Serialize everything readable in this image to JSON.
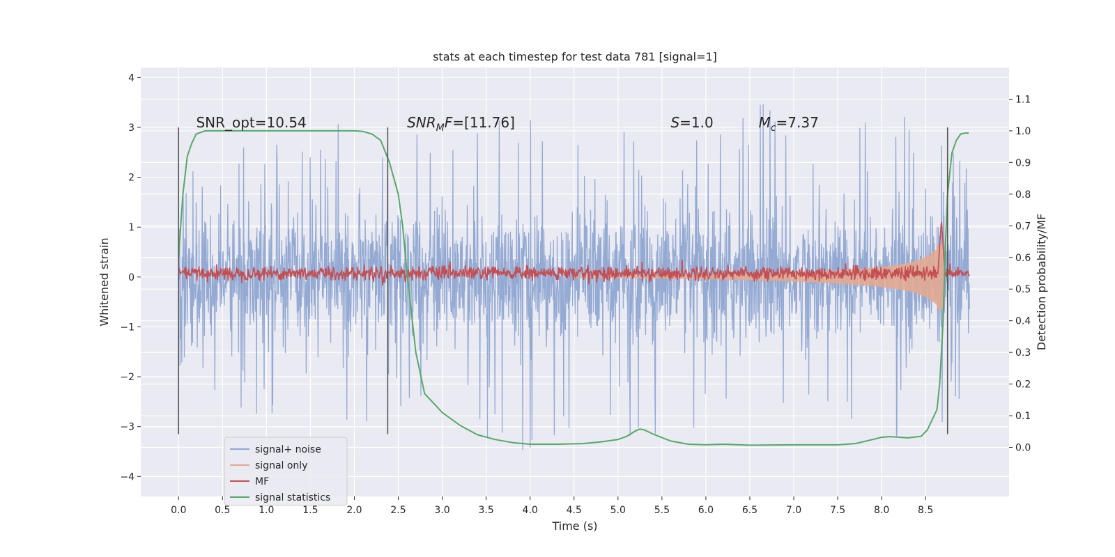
{
  "chart_data": {
    "type": "line",
    "title": "stats at each timestep for test data 781 [signal=1]",
    "xlabel": "Time (s)",
    "ylabel": "Whitened strain",
    "y2label": "Detection probability/MF",
    "xlim": [
      -0.43,
      9.45
    ],
    "ylim": [
      -4.4,
      4.2
    ],
    "y2lim": [
      -0.155,
      1.2
    ],
    "x_ticks": [
      0.0,
      0.5,
      1.0,
      1.5,
      2.0,
      2.5,
      3.0,
      3.5,
      4.0,
      4.5,
      5.0,
      5.5,
      6.0,
      6.5,
      7.0,
      7.5,
      8.0,
      8.5
    ],
    "x_tick_labels": [
      "0.0",
      "0.5",
      "1.0",
      "1.5",
      "2.0",
      "2.5",
      "3.0",
      "3.5",
      "4.0",
      "4.5",
      "5.0",
      "5.5",
      "6.0",
      "6.5",
      "7.0",
      "7.5",
      "8.0",
      "8.5"
    ],
    "y_ticks": [
      4,
      3,
      2,
      1,
      0,
      -1,
      -2,
      -3,
      -4
    ],
    "y_tick_labels": [
      "4",
      "3",
      "2",
      "1",
      "0",
      "−1",
      "−2",
      "−3",
      "−4"
    ],
    "y2_ticks": [
      1.1,
      1.0,
      0.9,
      0.8,
      0.7,
      0.6,
      0.5,
      0.4,
      0.3,
      0.2,
      0.1,
      0.0
    ],
    "y2_tick_labels": [
      "1.1",
      "1.0",
      "0.9",
      "0.8",
      "0.7",
      "0.6",
      "0.5",
      "0.4",
      "0.3",
      "0.2",
      "0.1",
      "0.0"
    ],
    "grid": true,
    "legend_position": "lower-left",
    "annotations": [
      {
        "text": "SNR_opt=10.54",
        "x": 0.2,
        "y": 3.0
      },
      {
        "text": "SNR_MF=[11.76]",
        "x": 2.6,
        "y": 3.0
      },
      {
        "text": "S=1.0",
        "x": 5.6,
        "y": 3.0
      },
      {
        "text": "M_c=7.37",
        "x": 6.6,
        "y": 3.0
      }
    ],
    "vertical_markers": {
      "x": [
        0.0,
        2.38,
        8.75
      ],
      "y_range": [
        -3.15,
        3.0
      ],
      "color": "#555555"
    },
    "series": [
      {
        "name": "signal+ noise",
        "axis": "left",
        "color": "#8fa6d1",
        "x_range": [
          0.0,
          9.0
        ],
        "noise_core": 1.05,
        "upper_envelope": [
          [
            0.0,
            2.4
          ],
          [
            1.0,
            2.8
          ],
          [
            2.0,
            3.2
          ],
          [
            3.0,
            3.0
          ],
          [
            3.9,
            3.8
          ],
          [
            4.6,
            2.9
          ],
          [
            5.5,
            3.0
          ],
          [
            6.8,
            3.7
          ],
          [
            7.5,
            3.0
          ],
          [
            8.3,
            3.4
          ],
          [
            9.0,
            2.2
          ]
        ],
        "lower_envelope": [
          [
            0.0,
            -2.3
          ],
          [
            1.0,
            -3.0
          ],
          [
            2.0,
            -2.9
          ],
          [
            3.0,
            -2.9
          ],
          [
            4.4,
            -4.0
          ],
          [
            5.0,
            -3.1
          ],
          [
            5.8,
            -3.7
          ],
          [
            7.0,
            -2.8
          ],
          [
            7.9,
            -3.3
          ],
          [
            8.6,
            -3.7
          ],
          [
            9.0,
            -2.0
          ]
        ]
      },
      {
        "name": "signal only",
        "axis": "left",
        "color": "#e8a98d",
        "x": [
          4.5,
          5.5,
          6.5,
          7.0,
          7.5,
          7.8,
          8.0,
          8.2,
          8.35,
          8.45,
          8.55,
          8.62,
          8.67,
          8.7,
          8.72
        ],
        "amplitude": [
          0.01,
          0.03,
          0.06,
          0.09,
          0.13,
          0.17,
          0.2,
          0.25,
          0.3,
          0.36,
          0.45,
          0.55,
          0.7,
          0.6,
          0.0
        ]
      },
      {
        "name": "MF",
        "axis": "right",
        "color": "#c44e52",
        "x_range": [
          0.0,
          9.0
        ],
        "baseline": 0.55,
        "noise_amplitude": 0.025,
        "peak": {
          "x": 8.68,
          "y": 0.72
        }
      },
      {
        "name": "signal statistics",
        "axis": "right",
        "color": "#55a868",
        "x": [
          0.0,
          0.05,
          0.1,
          0.15,
          0.2,
          0.3,
          0.5,
          1.0,
          1.5,
          2.0,
          2.1,
          2.2,
          2.3,
          2.4,
          2.5,
          2.55,
          2.6,
          2.7,
          2.8,
          3.0,
          3.2,
          3.4,
          3.6,
          3.8,
          4.0,
          4.3,
          4.6,
          4.8,
          5.0,
          5.1,
          5.2,
          5.25,
          5.3,
          5.4,
          5.6,
          5.8,
          6.0,
          6.2,
          6.5,
          7.0,
          7.5,
          7.7,
          7.9,
          8.0,
          8.1,
          8.3,
          8.45,
          8.52,
          8.58,
          8.63,
          8.66,
          8.7,
          8.72,
          8.75,
          8.8,
          8.85,
          8.9,
          8.95,
          8.99
        ],
        "y": [
          0.6,
          0.8,
          0.92,
          0.96,
          0.99,
          1.0,
          1.0,
          1.0,
          1.0,
          1.0,
          0.998,
          0.99,
          0.97,
          0.9,
          0.8,
          0.7,
          0.55,
          0.3,
          0.17,
          0.11,
          0.07,
          0.04,
          0.025,
          0.015,
          0.01,
          0.01,
          0.012,
          0.017,
          0.025,
          0.035,
          0.052,
          0.058,
          0.055,
          0.042,
          0.02,
          0.01,
          0.008,
          0.01,
          0.007,
          0.008,
          0.008,
          0.012,
          0.025,
          0.032,
          0.034,
          0.03,
          0.035,
          0.055,
          0.09,
          0.12,
          0.2,
          0.4,
          0.6,
          0.8,
          0.93,
          0.97,
          0.99,
          0.993,
          0.993
        ]
      }
    ]
  }
}
